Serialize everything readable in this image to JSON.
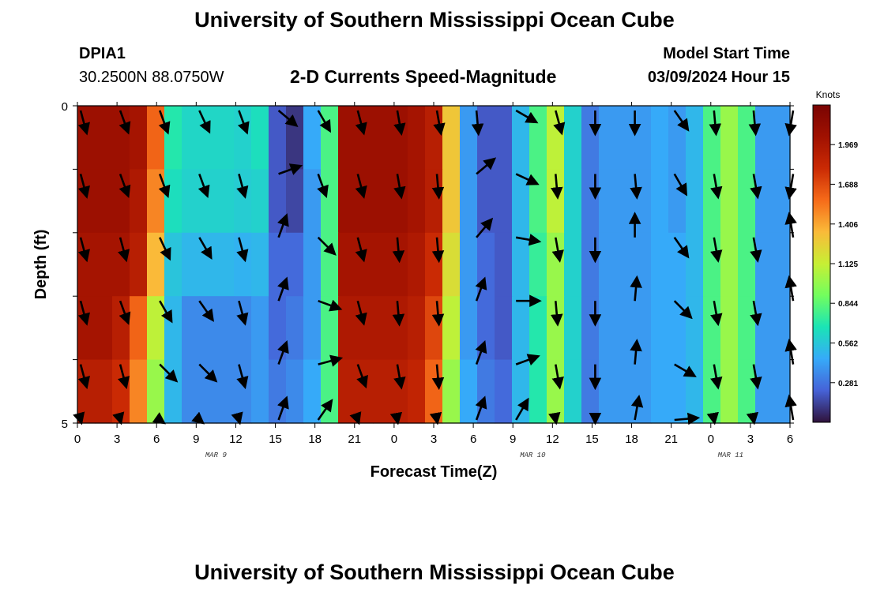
{
  "page": {
    "title": "University of Southern Mississippi Ocean Cube",
    "footer_title": "University of Southern Mississippi Ocean Cube"
  },
  "header": {
    "station": "DPIA1",
    "location": "30.2500N  88.0750W",
    "model_label": "Model Start Time",
    "model_time": "03/09/2024 Hour 15"
  },
  "chart_data": {
    "type": "heatmap",
    "title": "2-D Currents Speed-Magnitude",
    "xlabel": "Forecast Time(Z)",
    "ylabel": "Depth (ft)",
    "x_tick_labels": [
      "0",
      "3",
      "6",
      "9",
      "12",
      "15",
      "18",
      "21",
      "0",
      "3",
      "6",
      "9",
      "12",
      "15",
      "18",
      "21",
      "0",
      "3",
      "6"
    ],
    "y_tick_labels": [
      "0",
      "5"
    ],
    "date_labels": [
      {
        "at_tick": 3.5,
        "text": "MAR 9"
      },
      {
        "at_tick": 11.5,
        "text": "MAR 10"
      },
      {
        "at_tick": 16.5,
        "text": "MAR 11"
      }
    ],
    "ylim": [
      0,
      5
    ],
    "colorbar": {
      "label": "Knots",
      "min": 0.0,
      "max": 2.25,
      "ticks": [
        "1.969",
        "1.688",
        "1.406",
        "1.125",
        "0.844",
        "0.562",
        "0.281"
      ]
    },
    "depth_rows": 5,
    "speed_grid_knots": [
      [
        2.05,
        2.05,
        2.05,
        2.0,
        1.6,
        0.7,
        0.62,
        0.62,
        0.62,
        0.6,
        0.65,
        0.2,
        0.1,
        0.45,
        0.8,
        2.05,
        2.05,
        2.05,
        2.05,
        2.0,
        1.9,
        1.3,
        0.4,
        0.2,
        0.2,
        0.5,
        0.8,
        1.1,
        0.6,
        0.3,
        0.4,
        0.4,
        0.4,
        0.45,
        0.4,
        0.5,
        0.8,
        1.0,
        0.8,
        0.4,
        0.4
      ],
      [
        2.05,
        2.05,
        2.05,
        1.95,
        1.5,
        0.65,
        0.6,
        0.6,
        0.6,
        0.58,
        0.6,
        0.2,
        0.15,
        0.4,
        0.8,
        2.05,
        2.05,
        2.05,
        2.05,
        2.0,
        1.9,
        1.3,
        0.4,
        0.2,
        0.2,
        0.5,
        0.8,
        1.1,
        0.6,
        0.3,
        0.4,
        0.4,
        0.4,
        0.45,
        0.4,
        0.5,
        0.8,
        1.0,
        0.8,
        0.4,
        0.4
      ],
      [
        2.0,
        2.0,
        2.0,
        1.9,
        1.35,
        0.55,
        0.5,
        0.5,
        0.5,
        0.48,
        0.5,
        0.25,
        0.25,
        0.4,
        0.8,
        2.0,
        2.0,
        2.0,
        2.0,
        1.95,
        1.8,
        1.2,
        0.4,
        0.25,
        0.2,
        0.5,
        0.75,
        1.0,
        0.6,
        0.3,
        0.4,
        0.4,
        0.4,
        0.45,
        0.45,
        0.5,
        0.8,
        1.0,
        0.8,
        0.4,
        0.4
      ],
      [
        2.0,
        2.0,
        1.9,
        1.6,
        1.1,
        0.5,
        0.35,
        0.35,
        0.35,
        0.35,
        0.4,
        0.25,
        0.3,
        0.4,
        0.8,
        1.95,
        1.95,
        1.95,
        1.95,
        1.9,
        1.7,
        1.1,
        0.4,
        0.25,
        0.2,
        0.5,
        0.7,
        1.0,
        0.6,
        0.3,
        0.4,
        0.4,
        0.4,
        0.45,
        0.45,
        0.5,
        0.8,
        1.0,
        0.8,
        0.4,
        0.4
      ],
      [
        1.9,
        1.9,
        1.8,
        1.5,
        1.0,
        0.5,
        0.35,
        0.35,
        0.35,
        0.35,
        0.4,
        0.3,
        0.35,
        0.45,
        0.8,
        1.9,
        1.9,
        1.9,
        1.9,
        1.85,
        1.6,
        1.0,
        0.45,
        0.3,
        0.25,
        0.5,
        0.7,
        1.0,
        0.6,
        0.3,
        0.4,
        0.4,
        0.4,
        0.45,
        0.45,
        0.5,
        0.8,
        1.0,
        0.8,
        0.4,
        0.4
      ]
    ],
    "vector_rows_depth_ft": [
      0,
      1,
      2,
      3,
      4,
      5
    ],
    "vector_times_hours": [
      0,
      3,
      6,
      9,
      12,
      15,
      18,
      21,
      24,
      27,
      30,
      33,
      36,
      39,
      42,
      45,
      48,
      51,
      54
    ],
    "vector_dir_deg": [
      [
        165,
        160,
        160,
        155,
        160,
        130,
        150,
        165,
        170,
        170,
        175,
        120,
        165,
        180,
        180,
        145,
        175,
        175,
        180
      ],
      [
        165,
        160,
        160,
        160,
        165,
        70,
        160,
        165,
        170,
        175,
        50,
        115,
        175,
        180,
        175,
        150,
        170,
        170,
        180
      ],
      [
        165,
        165,
        155,
        150,
        165,
        20,
        135,
        165,
        175,
        175,
        40,
        100,
        170,
        180,
        0,
        145,
        170,
        170,
        0
      ],
      [
        165,
        160,
        150,
        145,
        165,
        20,
        110,
        165,
        175,
        175,
        20,
        90,
        175,
        180,
        5,
        135,
        170,
        170,
        0
      ],
      [
        165,
        165,
        135,
        135,
        165,
        20,
        75,
        160,
        170,
        175,
        20,
        70,
        170,
        180,
        5,
        120,
        170,
        170,
        0
      ],
      [
        165,
        165,
        125,
        130,
        165,
        20,
        35,
        160,
        170,
        170,
        20,
        30,
        170,
        180,
        10,
        85,
        170,
        170,
        5
      ]
    ]
  }
}
